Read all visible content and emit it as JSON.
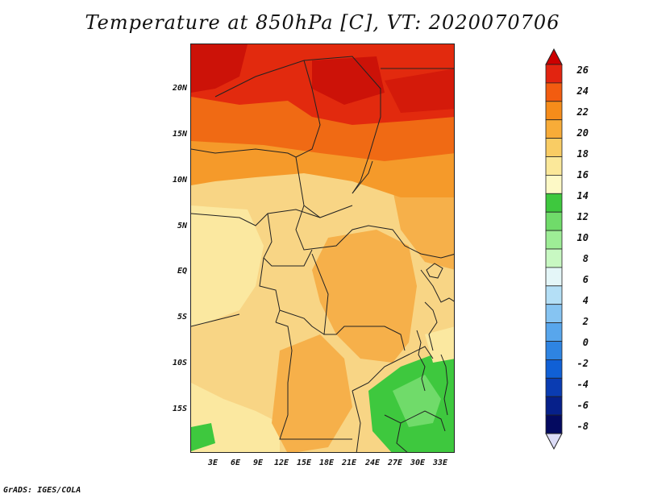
{
  "title": "Temperature at 850hPa [C], VT: 2020070706",
  "footer": "GrADS: IGES/COLA",
  "map": {
    "lat_labels": [
      "20N",
      "15N",
      "10N",
      "5N",
      "EQ",
      "5S",
      "10S",
      "15S"
    ],
    "lon_labels": [
      "3E",
      "6E",
      "9E",
      "12E",
      "15E",
      "18E",
      "21E",
      "24E",
      "27E",
      "30E",
      "33E"
    ]
  },
  "colorbar": {
    "labels": [
      "26",
      "24",
      "22",
      "20",
      "18",
      "16",
      "14",
      "12",
      "10",
      "8",
      "6",
      "4",
      "2",
      "0",
      "-2",
      "-4",
      "-6",
      "-8"
    ],
    "colors": [
      "#cc0000",
      "#e22410",
      "#f25c10",
      "#f68c1a",
      "#f8ac38",
      "#f9cc64",
      "#fbe89a",
      "#fdf9c6",
      "#3ec83e",
      "#70db6a",
      "#9eed96",
      "#c8f8c2",
      "#e4f6f8",
      "#b4dff6",
      "#86c4f2",
      "#58a6ec",
      "#2e84e2",
      "#1060d6",
      "#0a3cb2",
      "#06208a",
      "#040a60",
      "#dcdcf6"
    ]
  }
}
